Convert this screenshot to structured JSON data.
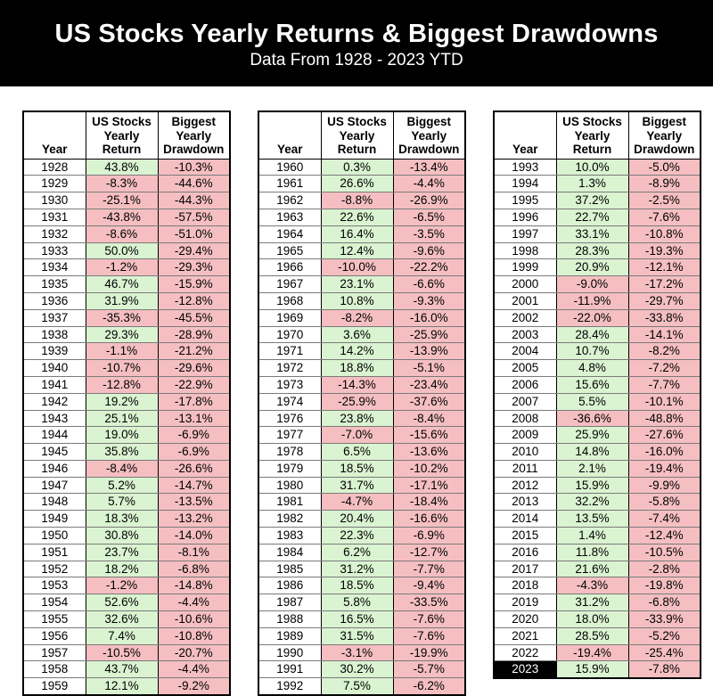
{
  "banner": {
    "title": "US Stocks Yearly Returns & Biggest Drawdowns",
    "subtitle": "Data From 1928 - 2023 YTD"
  },
  "colors": {
    "positive_bg": "#daf3d1",
    "negative_bg": "#f5bfc1",
    "highlight_year_bg": "#000000",
    "highlight_year_text": "#ffffff",
    "banner_bg": "#000000",
    "banner_text": "#ffffff"
  },
  "chart_data": {
    "type": "table",
    "title": "US Stocks Yearly Returns & Biggest Drawdowns",
    "subtitle": "Data From 1928 - 2023 YTD",
    "columns": [
      "Year",
      "US Stocks Yearly Return",
      "Biggest Yearly Drawdown"
    ],
    "highlighted_year": "2023",
    "tables": [
      {
        "rows": [
          [
            "1928",
            "43.8%",
            "-10.3%"
          ],
          [
            "1929",
            "-8.3%",
            "-44.6%"
          ],
          [
            "1930",
            "-25.1%",
            "-44.3%"
          ],
          [
            "1931",
            "-43.8%",
            "-57.5%"
          ],
          [
            "1932",
            "-8.6%",
            "-51.0%"
          ],
          [
            "1933",
            "50.0%",
            "-29.4%"
          ],
          [
            "1934",
            "-1.2%",
            "-29.3%"
          ],
          [
            "1935",
            "46.7%",
            "-15.9%"
          ],
          [
            "1936",
            "31.9%",
            "-12.8%"
          ],
          [
            "1937",
            "-35.3%",
            "-45.5%"
          ],
          [
            "1938",
            "29.3%",
            "-28.9%"
          ],
          [
            "1939",
            "-1.1%",
            "-21.2%"
          ],
          [
            "1940",
            "-10.7%",
            "-29.6%"
          ],
          [
            "1941",
            "-12.8%",
            "-22.9%"
          ],
          [
            "1942",
            "19.2%",
            "-17.8%"
          ],
          [
            "1943",
            "25.1%",
            "-13.1%"
          ],
          [
            "1944",
            "19.0%",
            "-6.9%"
          ],
          [
            "1945",
            "35.8%",
            "-6.9%"
          ],
          [
            "1946",
            "-8.4%",
            "-26.6%"
          ],
          [
            "1947",
            "5.2%",
            "-14.7%"
          ],
          [
            "1948",
            "5.7%",
            "-13.5%"
          ],
          [
            "1949",
            "18.3%",
            "-13.2%"
          ],
          [
            "1950",
            "30.8%",
            "-14.0%"
          ],
          [
            "1951",
            "23.7%",
            "-8.1%"
          ],
          [
            "1952",
            "18.2%",
            "-6.8%"
          ],
          [
            "1953",
            "-1.2%",
            "-14.8%"
          ],
          [
            "1954",
            "52.6%",
            "-4.4%"
          ],
          [
            "1955",
            "32.6%",
            "-10.6%"
          ],
          [
            "1956",
            "7.4%",
            "-10.8%"
          ],
          [
            "1957",
            "-10.5%",
            "-20.7%"
          ],
          [
            "1958",
            "43.7%",
            "-4.4%"
          ],
          [
            "1959",
            "12.1%",
            "-9.2%"
          ]
        ]
      },
      {
        "rows": [
          [
            "1960",
            "0.3%",
            "-13.4%"
          ],
          [
            "1961",
            "26.6%",
            "-4.4%"
          ],
          [
            "1962",
            "-8.8%",
            "-26.9%"
          ],
          [
            "1963",
            "22.6%",
            "-6.5%"
          ],
          [
            "1964",
            "16.4%",
            "-3.5%"
          ],
          [
            "1965",
            "12.4%",
            "-9.6%"
          ],
          [
            "1966",
            "-10.0%",
            "-22.2%"
          ],
          [
            "1967",
            "23.1%",
            "-6.6%"
          ],
          [
            "1968",
            "10.8%",
            "-9.3%"
          ],
          [
            "1969",
            "-8.2%",
            "-16.0%"
          ],
          [
            "1970",
            "3.6%",
            "-25.9%"
          ],
          [
            "1971",
            "14.2%",
            "-13.9%"
          ],
          [
            "1972",
            "18.8%",
            "-5.1%"
          ],
          [
            "1973",
            "-14.3%",
            "-23.4%"
          ],
          [
            "1974",
            "-25.9%",
            "-37.6%"
          ],
          [
            "1976",
            "23.8%",
            "-8.4%"
          ],
          [
            "1977",
            "-7.0%",
            "-15.6%"
          ],
          [
            "1978",
            "6.5%",
            "-13.6%"
          ],
          [
            "1979",
            "18.5%",
            "-10.2%"
          ],
          [
            "1980",
            "31.7%",
            "-17.1%"
          ],
          [
            "1981",
            "-4.7%",
            "-18.4%"
          ],
          [
            "1982",
            "20.4%",
            "-16.6%"
          ],
          [
            "1983",
            "22.3%",
            "-6.9%"
          ],
          [
            "1984",
            "6.2%",
            "-12.7%"
          ],
          [
            "1985",
            "31.2%",
            "-7.7%"
          ],
          [
            "1986",
            "18.5%",
            "-9.4%"
          ],
          [
            "1987",
            "5.8%",
            "-33.5%"
          ],
          [
            "1988",
            "16.5%",
            "-7.6%"
          ],
          [
            "1989",
            "31.5%",
            "-7.6%"
          ],
          [
            "1990",
            "-3.1%",
            "-19.9%"
          ],
          [
            "1991",
            "30.2%",
            "-5.7%"
          ],
          [
            "1992",
            "7.5%",
            "-6.2%"
          ]
        ]
      },
      {
        "rows": [
          [
            "1993",
            "10.0%",
            "-5.0%"
          ],
          [
            "1994",
            "1.3%",
            "-8.9%"
          ],
          [
            "1995",
            "37.2%",
            "-2.5%"
          ],
          [
            "1996",
            "22.7%",
            "-7.6%"
          ],
          [
            "1997",
            "33.1%",
            "-10.8%"
          ],
          [
            "1998",
            "28.3%",
            "-19.3%"
          ],
          [
            "1999",
            "20.9%",
            "-12.1%"
          ],
          [
            "2000",
            "-9.0%",
            "-17.2%"
          ],
          [
            "2001",
            "-11.9%",
            "-29.7%"
          ],
          [
            "2002",
            "-22.0%",
            "-33.8%"
          ],
          [
            "2003",
            "28.4%",
            "-14.1%"
          ],
          [
            "2004",
            "10.7%",
            "-8.2%"
          ],
          [
            "2005",
            "4.8%",
            "-7.2%"
          ],
          [
            "2006",
            "15.6%",
            "-7.7%"
          ],
          [
            "2007",
            "5.5%",
            "-10.1%"
          ],
          [
            "2008",
            "-36.6%",
            "-48.8%"
          ],
          [
            "2009",
            "25.9%",
            "-27.6%"
          ],
          [
            "2010",
            "14.8%",
            "-16.0%"
          ],
          [
            "2011",
            "2.1%",
            "-19.4%"
          ],
          [
            "2012",
            "15.9%",
            "-9.9%"
          ],
          [
            "2013",
            "32.2%",
            "-5.8%"
          ],
          [
            "2014",
            "13.5%",
            "-7.4%"
          ],
          [
            "2015",
            "1.4%",
            "-12.4%"
          ],
          [
            "2016",
            "11.8%",
            "-10.5%"
          ],
          [
            "2017",
            "21.6%",
            "-2.8%"
          ],
          [
            "2018",
            "-4.3%",
            "-19.8%"
          ],
          [
            "2019",
            "31.2%",
            "-6.8%"
          ],
          [
            "2020",
            "18.0%",
            "-33.9%"
          ],
          [
            "2021",
            "28.5%",
            "-5.2%"
          ],
          [
            "2022",
            "-19.4%",
            "-25.4%"
          ],
          [
            "2023",
            "15.9%",
            "-7.8%"
          ]
        ]
      }
    ]
  }
}
